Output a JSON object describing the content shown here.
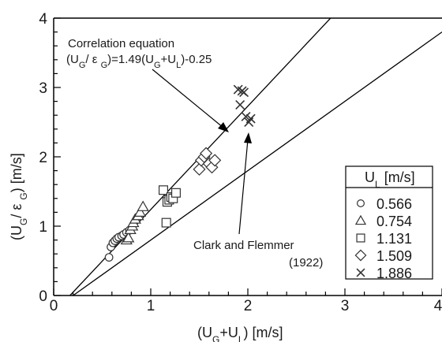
{
  "chart_data": {
    "type": "scatter",
    "xlabel": "(U_G+U_L) [m/s]",
    "ylabel": "(U_G/ ε_G) [m/s]",
    "xlim": [
      0,
      4
    ],
    "ylim": [
      0,
      4
    ],
    "xticks": [
      "0",
      "1",
      "2",
      "3",
      "4"
    ],
    "yticks": [
      "0",
      "1",
      "2",
      "3",
      "4"
    ],
    "grid": false,
    "legend": {
      "title": "U_L [m/s]",
      "position": "right",
      "entries": [
        "0.566",
        "0.754",
        "1.131",
        "1.509",
        "1.886"
      ]
    },
    "series": [
      {
        "name": "0.566",
        "marker": "circle",
        "points": [
          [
            0.57,
            0.55
          ],
          [
            0.59,
            0.7
          ],
          [
            0.61,
            0.76
          ],
          [
            0.63,
            0.79
          ],
          [
            0.65,
            0.82
          ],
          [
            0.67,
            0.84
          ],
          [
            0.7,
            0.86
          ],
          [
            0.72,
            0.88
          ],
          [
            0.75,
            0.91
          ],
          [
            0.78,
            0.94
          ]
        ]
      },
      {
        "name": "0.754",
        "marker": "triangle",
        "points": [
          [
            0.75,
            0.8
          ],
          [
            0.77,
            0.83
          ],
          [
            0.79,
            0.95
          ],
          [
            0.81,
            1.0
          ],
          [
            0.82,
            1.05
          ],
          [
            0.84,
            1.1
          ],
          [
            0.87,
            1.15
          ],
          [
            0.89,
            1.2
          ],
          [
            0.92,
            1.28
          ]
        ]
      },
      {
        "name": "1.131",
        "marker": "square",
        "points": [
          [
            1.13,
            1.52
          ],
          [
            1.16,
            1.05
          ],
          [
            1.17,
            1.35
          ],
          [
            1.19,
            1.38
          ],
          [
            1.21,
            1.42
          ],
          [
            1.23,
            1.4
          ],
          [
            1.26,
            1.48
          ]
        ]
      },
      {
        "name": "1.509",
        "marker": "diamond",
        "points": [
          [
            1.5,
            1.82
          ],
          [
            1.52,
            1.95
          ],
          [
            1.55,
            2.0
          ],
          [
            1.57,
            2.05
          ],
          [
            1.6,
            1.9
          ],
          [
            1.63,
            1.85
          ],
          [
            1.66,
            1.95
          ]
        ]
      },
      {
        "name": "1.886",
        "marker": "x",
        "points": [
          [
            1.9,
            2.97
          ],
          [
            1.92,
            2.75
          ],
          [
            1.94,
            2.95
          ],
          [
            1.96,
            2.93
          ],
          [
            1.98,
            2.58
          ],
          [
            2.01,
            2.5
          ],
          [
            2.03,
            2.55
          ]
        ]
      }
    ],
    "lines": [
      {
        "label": "Correlation equation",
        "slope": 1.49,
        "intercept": -0.25
      },
      {
        "label": "Clark and Flemmer",
        "slope": 1.0,
        "intercept": -0.2
      }
    ],
    "annotations": {
      "correlation_title": "Correlation equation",
      "correlation_formula": "(U_G/ ε_G)=1.49(U_G+U_L)-0.25",
      "clark_name": "Clark and Flemmer",
      "clark_year": "(1922)"
    }
  }
}
